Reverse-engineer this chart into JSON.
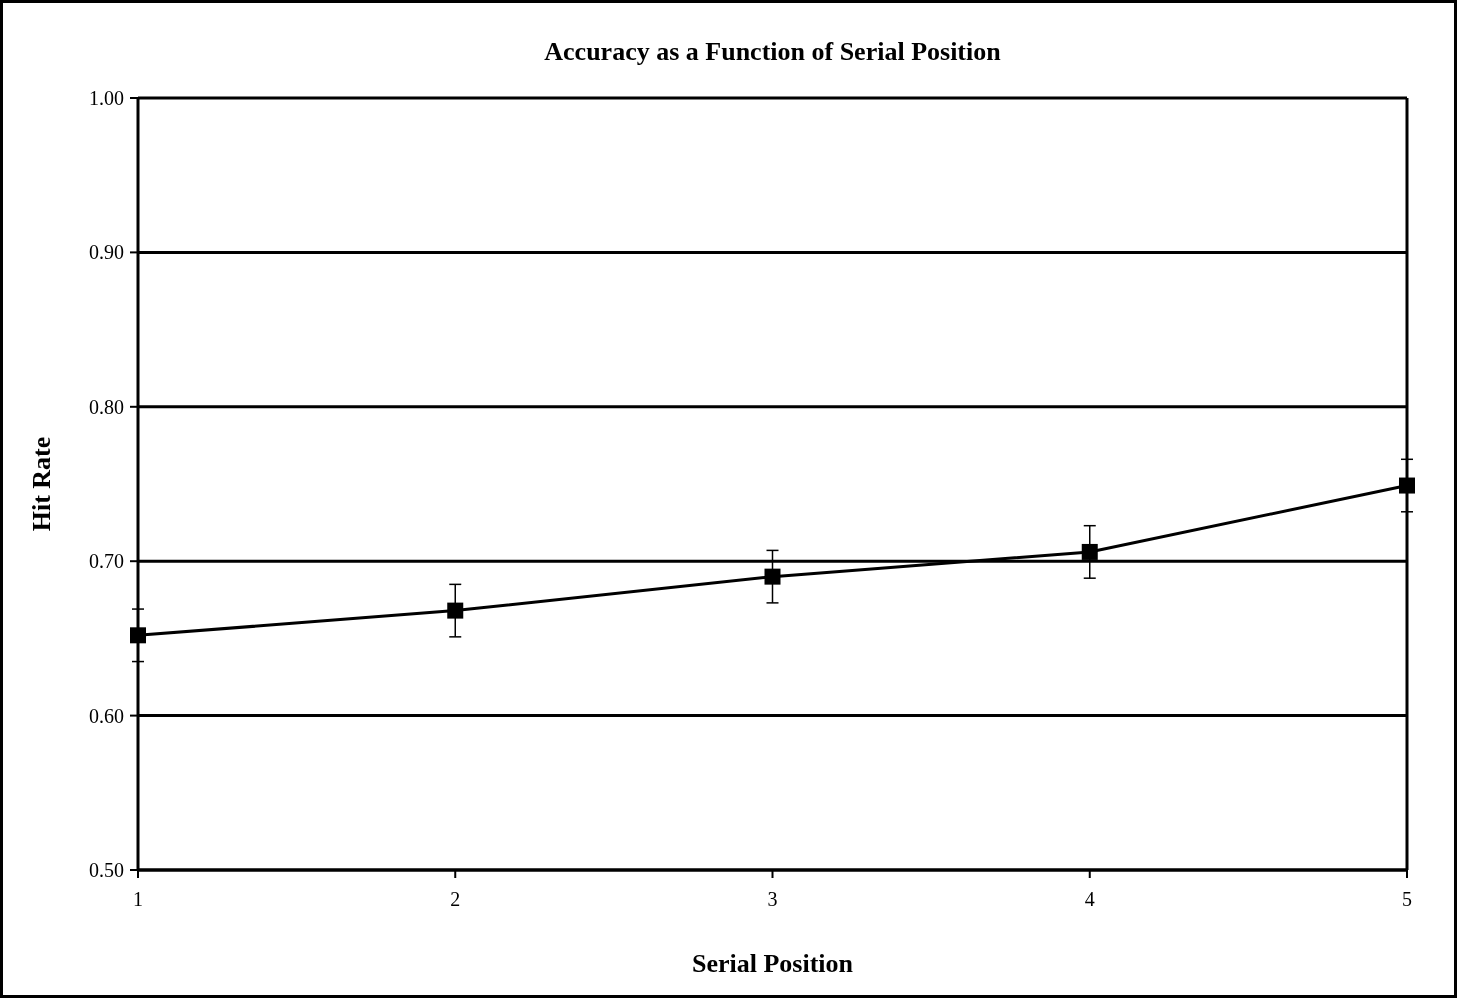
{
  "chart_data": {
    "type": "line",
    "title": "Accuracy as a Function of Serial Position",
    "xlabel": "Serial Position",
    "ylabel": "Hit Rate",
    "x": [
      1,
      2,
      3,
      4,
      5
    ],
    "series": [
      {
        "color": "#000000",
        "values": [
          0.652,
          0.668,
          0.69,
          0.706,
          0.749
        ],
        "errors": [
          0.017,
          0.017,
          0.017,
          0.017,
          0.017
        ]
      }
    ],
    "xlim": [
      1,
      5
    ],
    "xticks": [
      1,
      2,
      3,
      4,
      5
    ],
    "ylim": [
      0.5,
      1.0
    ],
    "yticks": [
      {
        "value": 0.5,
        "label": "0.50"
      },
      {
        "value": 0.6,
        "label": "0.60"
      },
      {
        "value": 0.7,
        "label": "0.70"
      },
      {
        "value": 0.8,
        "label": "0.80"
      },
      {
        "value": 0.9,
        "label": "0.90"
      },
      {
        "value": 1.0,
        "label": "1.00"
      }
    ],
    "grid": "y",
    "marker": "square",
    "line_style": "solid"
  }
}
